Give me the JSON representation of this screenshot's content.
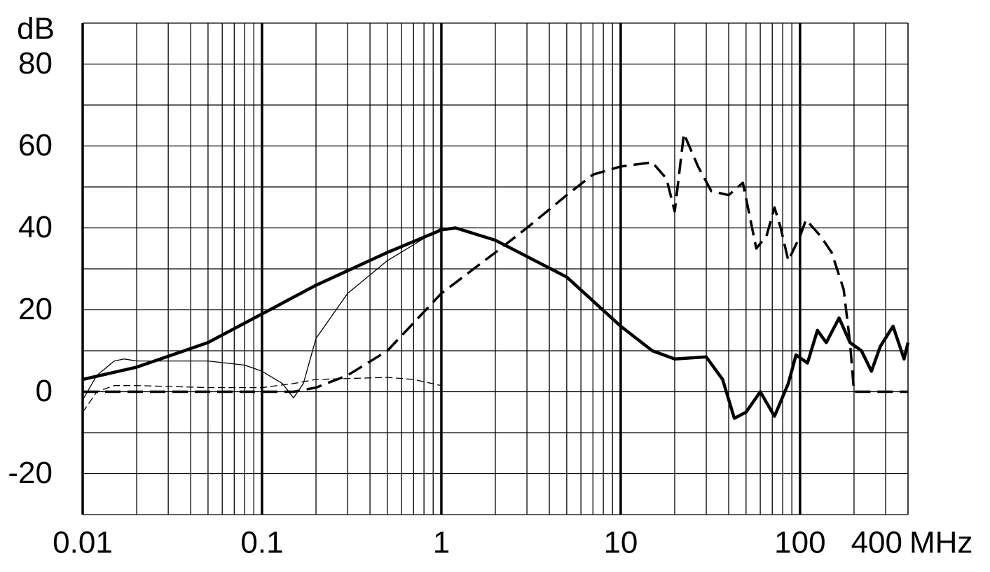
{
  "chart_data": {
    "type": "line",
    "y_unit": "dB",
    "x_unit": "MHz",
    "xscale": "log",
    "xlim": [
      0.01,
      400
    ],
    "ylim": [
      -30,
      90
    ],
    "xticks": [
      0.01,
      0.1,
      1,
      10,
      100,
      400
    ],
    "xminor": [
      0.02,
      0.03,
      0.04,
      0.05,
      0.06,
      0.07,
      0.08,
      0.09,
      0.2,
      0.3,
      0.4,
      0.5,
      0.6,
      0.7,
      0.8,
      0.9,
      2,
      3,
      4,
      5,
      6,
      7,
      8,
      9,
      20,
      30,
      40,
      50,
      60,
      70,
      80,
      90,
      200,
      300
    ],
    "yticks": [
      -20,
      0,
      20,
      40,
      60,
      80
    ],
    "yminor": [
      -30,
      -10,
      10,
      30,
      50,
      70,
      90
    ],
    "grid": true,
    "series": [
      {
        "color": "#000000",
        "style": "solid",
        "width": 4.5,
        "x": [
          0.01,
          0.02,
          0.05,
          0.1,
          0.2,
          0.5,
          1,
          1.2,
          2,
          5,
          10,
          15,
          20,
          30,
          37,
          43,
          50,
          60,
          72,
          86,
          95,
          110,
          125,
          140,
          165,
          190,
          220,
          250,
          280,
          330,
          380,
          400
        ],
        "values": [
          3,
          6,
          12,
          19,
          26,
          34,
          39.5,
          40,
          37,
          28,
          16,
          10,
          8,
          8.5,
          3,
          -6.5,
          -5,
          0,
          -6,
          2,
          9,
          7,
          15,
          12,
          18,
          12,
          10,
          5,
          11,
          16,
          8,
          12
        ]
      },
      {
        "color": "#000000",
        "style": "dashed",
        "width": 3.5,
        "x": [
          0.01,
          0.1,
          0.15,
          0.2,
          0.3,
          0.5,
          1,
          2,
          3,
          5,
          7,
          10,
          15,
          18,
          20,
          22.5,
          27,
          32,
          40,
          48,
          57,
          65,
          72,
          78,
          86,
          100,
          108,
          130,
          150,
          175,
          190,
          200,
          400
        ],
        "values": [
          0,
          0,
          0,
          1,
          4,
          10,
          24,
          34,
          40,
          48,
          53,
          55,
          56,
          52,
          44,
          63,
          55,
          49,
          48,
          51,
          35,
          38,
          45,
          40,
          32,
          38,
          42,
          38,
          34,
          25,
          12,
          0,
          0
        ]
      },
      {
        "color": "#000000",
        "style": "solid",
        "width": 1.3,
        "x": [
          0.01,
          0.012,
          0.015,
          0.017,
          0.02,
          0.05,
          0.08,
          0.1,
          0.13,
          0.15,
          0.17,
          0.2,
          0.3,
          0.5,
          1
        ],
        "values": [
          -2,
          4,
          7.5,
          8,
          7.5,
          7.5,
          6.5,
          5,
          2,
          -1.5,
          2,
          13,
          24,
          32,
          40
        ]
      },
      {
        "color": "#000000",
        "style": "dashed",
        "width": 1.3,
        "x": [
          0.01,
          0.012,
          0.015,
          0.02,
          0.05,
          0.1,
          0.15,
          0.2,
          0.5,
          0.7,
          1
        ],
        "values": [
          -5,
          0,
          1.5,
          1.5,
          1,
          1,
          2,
          3,
          3.5,
          3,
          1.5
        ]
      }
    ]
  }
}
